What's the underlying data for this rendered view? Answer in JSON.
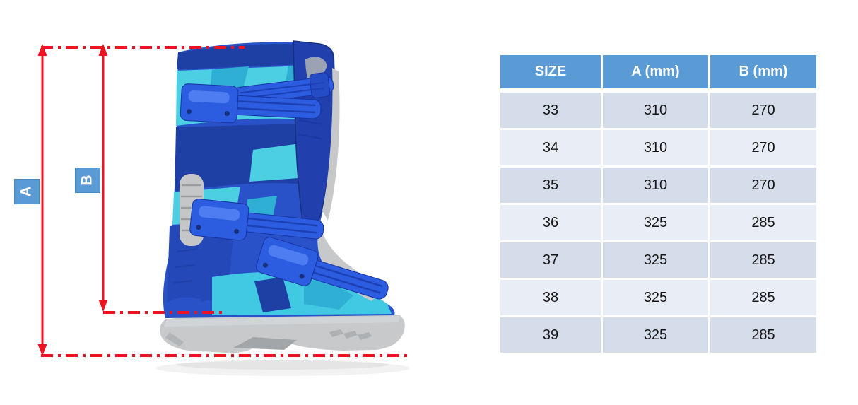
{
  "colors": {
    "accent_blue": "#5b9bd5",
    "dimension_line_red": "#ec1420",
    "table_band_dark": "#d5dcea",
    "table_band_light": "#e9edf6"
  },
  "diagram": {
    "labels": {
      "a": "A",
      "b": "B"
    },
    "subject": "blue-camo-motocross-boot"
  },
  "size_table": {
    "headers": [
      "SIZE",
      "A (mm)",
      "B (mm)"
    ],
    "rows": [
      [
        "33",
        "310",
        "270"
      ],
      [
        "34",
        "310",
        "270"
      ],
      [
        "35",
        "310",
        "270"
      ],
      [
        "36",
        "325",
        "285"
      ],
      [
        "37",
        "325",
        "285"
      ],
      [
        "38",
        "325",
        "285"
      ],
      [
        "39",
        "325",
        "285"
      ]
    ]
  }
}
